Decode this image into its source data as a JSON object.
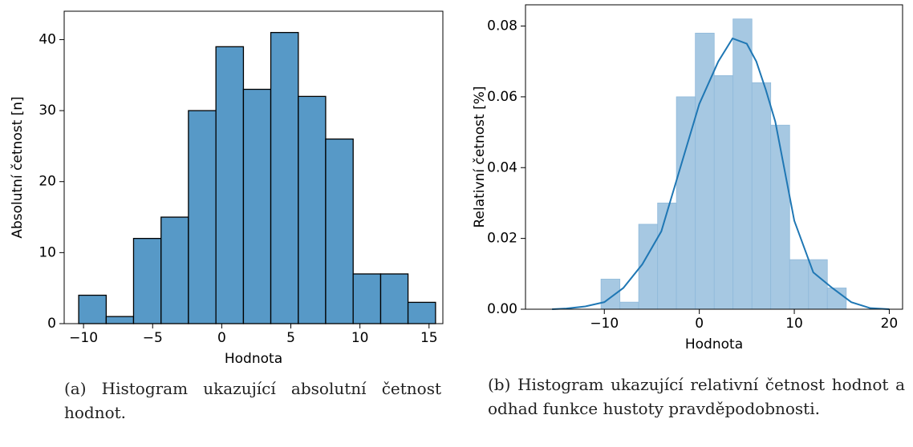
{
  "chart_data": [
    {
      "type": "histogram",
      "caption": "(a) Histogram ukazující absolutní četnost hodnot.",
      "xlabel": "Hodnota",
      "ylabel": "Absolutní četnost [n]",
      "bins": [
        -10.35,
        -8.36,
        -6.38,
        -4.39,
        -2.41,
        -0.42,
        1.57,
        3.55,
        5.54,
        7.52,
        9.51,
        11.5,
        13.48,
        15.47
      ],
      "values": [
        4,
        1,
        12,
        15,
        30,
        39,
        33,
        41,
        32,
        26,
        7,
        7,
        3
      ],
      "color": "#5799c7",
      "edgecolor": "#000000",
      "xlim": [
        -11.4,
        16
      ],
      "ylim": [
        0,
        44
      ],
      "xticks": [
        {
          "value": -10,
          "label": "−10"
        },
        {
          "value": -5,
          "label": "−5"
        },
        0,
        5,
        10,
        15
      ],
      "yticks": [
        0,
        10,
        20,
        30,
        40
      ]
    },
    {
      "type": "histogram",
      "caption": "(b) Histogram ukazující relativní četnost hodnot a odhad funkce hustoty pravděpodobnosti.",
      "xlabel": "Hodnota",
      "ylabel": "Relativní četnost [%]",
      "bins": [
        -10.35,
        -8.36,
        -6.38,
        -4.39,
        -2.41,
        -0.42,
        1.57,
        3.55,
        5.54,
        7.52,
        9.51,
        11.5,
        13.48,
        15.47
      ],
      "values": [
        0.0085,
        0.002,
        0.024,
        0.03,
        0.06,
        0.078,
        0.066,
        0.082,
        0.064,
        0.052,
        0.014,
        0.014,
        0.006
      ],
      "color": "#a6c8e2",
      "edgecolor": "#8fb9da",
      "kde": {
        "color": "#1f77b4",
        "x": [
          -15.5,
          -14,
          -12,
          -10,
          -8,
          -6,
          -4,
          -2,
          0,
          2,
          3.5,
          5,
          6,
          7,
          8,
          10,
          12,
          14,
          16,
          18,
          20
        ],
        "values": [
          0,
          0.0002,
          0.0008,
          0.002,
          0.006,
          0.0127,
          0.022,
          0.04,
          0.058,
          0.07,
          0.0765,
          0.075,
          0.07,
          0.062,
          0.053,
          0.025,
          0.0104,
          0.006,
          0.002,
          0.0003,
          0
        ]
      },
      "xlim": [
        -18.3,
        21.4
      ],
      "ylim": [
        0,
        0.086
      ],
      "xticks": [
        {
          "value": -10,
          "label": "−10"
        },
        0,
        10,
        20
      ],
      "yticks": [
        {
          "value": 0,
          "label": "0.00"
        },
        0.02,
        0.04,
        0.06,
        0.08
      ]
    }
  ]
}
